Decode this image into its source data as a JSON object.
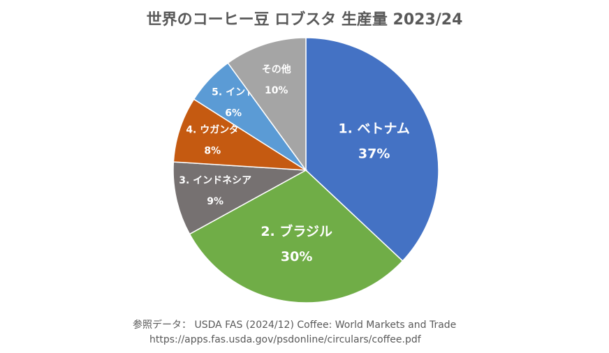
{
  "chart_data": {
    "type": "pie",
    "title": "世界のコーヒー豆 ロブスタ 生産量 2023/24",
    "slices": [
      {
        "label": "1. ベトナム",
        "value": 37,
        "percent_label": "37%",
        "color": "#4472C4"
      },
      {
        "label": "2. ブラジル",
        "value": 30,
        "percent_label": "30%",
        "color": "#70AD47"
      },
      {
        "label": "3. インドネシア",
        "value": 9,
        "percent_label": "9%",
        "color": "#767171"
      },
      {
        "label": "4. ウガンダ",
        "value": 8,
        "percent_label": "8%",
        "color": "#C55A11"
      },
      {
        "label": "5. インド",
        "value": 6,
        "percent_label": "6%",
        "color": "#5B9BD5"
      },
      {
        "label": "その他",
        "value": 10,
        "percent_label": "10%",
        "color": "#A5A5A5"
      }
    ],
    "legend": "none",
    "start_angle": "12 o'clock",
    "direction": "clockwise"
  },
  "footer": {
    "source": "参照データ： USDA FAS (2024/12) Coffee: World Markets and Trade",
    "url": "https://apps.fas.usda.gov/psdonline/circulars/coffee.pdf"
  }
}
